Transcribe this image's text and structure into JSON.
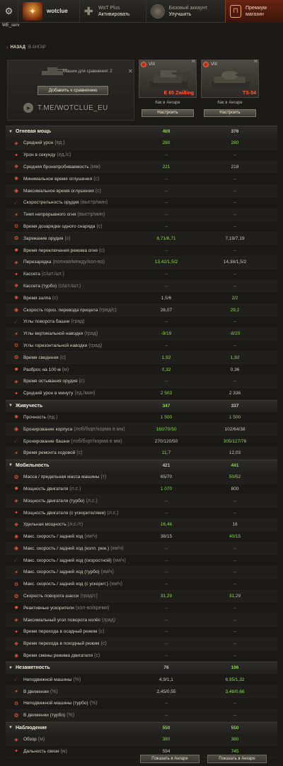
{
  "header": {
    "username": "wotclue",
    "wotplus": {
      "line1": "WoT Plus",
      "line2": "Активировать"
    },
    "base": {
      "line1": "Базовый аккаунт",
      "line2": "Улучшить"
    },
    "shop": {
      "line1": "Премиум",
      "line2": "магазин"
    }
  },
  "server": "WE_serv",
  "nav": {
    "back": "НАЗАД",
    "target": "В АНГАР"
  },
  "compare": {
    "count_label": "Машин для сравнения: 2",
    "add_button": "Добавить к сравнению",
    "telegram": "T.ME/WOTCLUE_EU"
  },
  "tanks": [
    {
      "tier": "VIII",
      "name": "E 65 Zwilling",
      "status": "Как в Ангаре",
      "config": "Настроить"
    },
    {
      "tier": "VIII",
      "name": "TS-54",
      "status": "Как в Ангаре",
      "config": "Настроить"
    }
  ],
  "colors": {
    "good": "#86d450",
    "accent": "#e0432a"
  },
  "rows": [
    {
      "type": "section",
      "name": "Огневая мощь",
      "v1": "469",
      "v2": "376",
      "c1": "good",
      "c2": "neutral"
    },
    {
      "name": "Средний урон",
      "unit": "(ед.)",
      "icon": "damage-icon",
      "v1": "280",
      "v2": "280",
      "c1": "good",
      "c2": "good"
    },
    {
      "name": "Урон в секунду",
      "unit": "(ед./с)",
      "icon": "dps-icon",
      "v1": "--",
      "v2": "--"
    },
    {
      "name": "Средняя бронепробиваемость",
      "unit": "(мм)",
      "icon": "penetration-icon",
      "v1": "221",
      "v2": "218",
      "c1": "good"
    },
    {
      "name": "Минимальное время оглушения",
      "unit": "(с)",
      "icon": "stun-min-icon",
      "v1": "--",
      "v2": "--"
    },
    {
      "name": "Максимальное время оглушения",
      "unit": "(с)",
      "icon": "stun-max-icon",
      "v1": "--",
      "v2": "--"
    },
    {
      "name": "Скорострельность орудия",
      "unit": "(выстр/мин)",
      "icon": "rate-of-fire-icon",
      "v1": "--",
      "v2": "--"
    },
    {
      "name": "Темп непрерывного огня",
      "unit": "(выстр/мин)",
      "icon": "continuous-fire-icon",
      "v1": "--",
      "v2": "--"
    },
    {
      "name": "Время дозарядки одного снаряда",
      "unit": "(с)",
      "icon": "shell-reload-icon",
      "v1": "--",
      "v2": "--"
    },
    {
      "name": "Заряжание орудия",
      "unit": "(с)",
      "icon": "gun-loading-icon",
      "v1": "6,71/6,71",
      "v2": "7,19/7,19",
      "c1": "good"
    },
    {
      "name": "Время переключения режима огня",
      "unit": "(с)",
      "icon": "fire-mode-icon",
      "v1": "--",
      "v2": "--"
    },
    {
      "name": "Перезарядка",
      "unit": "(полная/между/кол-во)",
      "icon": "reload-icon",
      "v1": "13,42/1,5/2",
      "v2": "14,38/1,5/2",
      "c1": "good"
    },
    {
      "name": "Кассета",
      "unit": "(с/шт./шт.)",
      "icon": "magazine-icon",
      "v1": "--",
      "v2": "--"
    },
    {
      "name": "Кассета (турбо)",
      "unit": "(с/шт./шт.)",
      "icon": "magazine-turbo-icon",
      "v1": "--",
      "v2": "--"
    },
    {
      "name": "Время залпа",
      "unit": "(с)",
      "icon": "salvo-icon",
      "v1": "1,5/6",
      "v2": "2/2",
      "c2": "good"
    },
    {
      "name": "Скорость гориз. перевода прицела",
      "unit": "(град/с)",
      "icon": "traverse-icon",
      "v1": "26,07",
      "v2": "29,2",
      "c2": "good"
    },
    {
      "name": "Углы поворота башни",
      "unit": "(град)",
      "icon": "turret-angle-icon",
      "v1": "--",
      "v2": "--"
    },
    {
      "name": "Углы вертикальной наводки",
      "unit": "(град)",
      "icon": "vertical-angle-icon",
      "v1": "-9/19",
      "v2": "-8/20",
      "c1": "good",
      "c2": "good"
    },
    {
      "name": "Углы горизонтальной наводки",
      "unit": "(град)",
      "icon": "horizontal-angle-icon",
      "v1": "--",
      "v2": "--"
    },
    {
      "name": "Время сведения",
      "unit": "(с)",
      "icon": "aim-time-icon",
      "v1": "1,92",
      "v2": "1,92",
      "c1": "good",
      "c2": "good"
    },
    {
      "name": "Разброс на 100 м",
      "unit": "(м)",
      "icon": "dispersion-icon",
      "v1": "0,32",
      "v2": "0,36",
      "c1": "good"
    },
    {
      "name": "Время остывания орудия",
      "unit": "(с)",
      "icon": "cooldown-icon",
      "v1": "--",
      "v2": "--"
    },
    {
      "name": "Средний урон в минуту",
      "unit": "(ед./мин)",
      "icon": "dpm-icon",
      "v1": "2 503",
      "v2": "2 336",
      "c1": "good"
    },
    {
      "type": "section",
      "name": "Живучесть",
      "v1": "347",
      "v2": "337",
      "c1": "good",
      "c2": "neutral"
    },
    {
      "name": "Прочность",
      "unit": "(ед.)",
      "icon": "hitpoints-icon",
      "v1": "1 500",
      "v2": "1 500",
      "c1": "good",
      "c2": "good"
    },
    {
      "name": "Бронирование корпуса",
      "unit": "(лоб/борт/корма в мм)",
      "icon": "hull-armor-icon",
      "v1": "160/70/50",
      "v2": "102/64/38",
      "c1": "good"
    },
    {
      "name": "Бронирование башни",
      "unit": "(лоб/борт/корма в мм)",
      "icon": "turret-armor-icon",
      "v1": "270/120/50",
      "v2": "305/127/76",
      "c2": "good"
    },
    {
      "name": "Время ремонта ходовой",
      "unit": "(с)",
      "icon": "repair-icon",
      "v1": "11,7",
      "v2": "12,03",
      "c1": "good"
    },
    {
      "type": "section",
      "name": "Мобильность",
      "v1": "421",
      "v2": "441",
      "c1": "neutral",
      "c2": "good"
    },
    {
      "name": "Масса / предельная масса машины",
      "unit": "(т)",
      "icon": "weight-icon",
      "v1": "65/70",
      "v2": "50/52",
      "c2": "good"
    },
    {
      "name": "Мощность двигателя",
      "unit": "(л.с.)",
      "icon": "engine-icon",
      "v1": "1 070",
      "v2": "800",
      "c1": "good"
    },
    {
      "name": "Мощность двигателя (турбо)",
      "unit": "(л.с.)",
      "icon": "engine-turbo-icon",
      "v1": "--",
      "v2": "--"
    },
    {
      "name": "Мощность двигателя (с ускорителями)",
      "unit": "(л.с.)",
      "icon": "engine-boost-icon",
      "v1": "--",
      "v2": "--"
    },
    {
      "name": "Удельная мощность",
      "unit": "(л.с./т)",
      "icon": "power-ratio-icon",
      "v1": "16,46",
      "v2": "16",
      "c1": "good"
    },
    {
      "name": "Макс. скорость / задний ход",
      "unit": "(км/ч)",
      "icon": "speed-icon",
      "v1": "38/15",
      "v2": "40/15",
      "c2": "good"
    },
    {
      "name": "Макс. скорость / задний ход (колп. реж.)",
      "unit": "(км/ч)",
      "icon": "speed-wheel-icon",
      "v1": "--",
      "v2": "--"
    },
    {
      "name": "Макс. скорость / задний ход (скоростной)",
      "unit": "(км/ч)",
      "icon": "speed-fast-icon",
      "v1": "--",
      "v2": "--"
    },
    {
      "name": "Макс. скорость / задний ход (турбо)",
      "unit": "(км/ч)",
      "icon": "speed-turbo-icon",
      "v1": "--",
      "v2": "--"
    },
    {
      "name": "Макс. скорость / задний ход (с ускорит.)",
      "unit": "(км/ч)",
      "icon": "speed-boost-icon",
      "v1": "--",
      "v2": "--"
    },
    {
      "name": "Скорость поворота шасси",
      "unit": "(град/с)",
      "icon": "hull-traverse-icon",
      "v1": "31,29",
      "v2": "31,29",
      "c1": "good",
      "c2": "good"
    },
    {
      "name": "Реактивные ускорители",
      "unit": "(кол-во/время)",
      "icon": "rocket-icon",
      "v1": "--",
      "v2": "--"
    },
    {
      "name": "Максимальный угол поворота колёс",
      "unit": "(град)",
      "icon": "wheel-angle-icon",
      "v1": "--",
      "v2": "--"
    },
    {
      "name": "Время перехода в осадный режим",
      "unit": "(с)",
      "icon": "siege-icon",
      "v1": "--",
      "v2": "--"
    },
    {
      "name": "Время перехода в походный режим",
      "unit": "(с)",
      "icon": "travel-icon",
      "v1": "--",
      "v2": "--"
    },
    {
      "name": "Время смены режима двигателя",
      "unit": "(с)",
      "icon": "engine-mode-icon",
      "v1": "--",
      "v2": "--"
    },
    {
      "type": "section",
      "name": "Незаметность",
      "v1": "76",
      "v2": "106",
      "c1": "neutral",
      "c2": "good"
    },
    {
      "name": "Неподвижной машины",
      "unit": "(%)",
      "icon": "camo-static-icon",
      "v1": "4,9/1,1",
      "v2": "6,95/1,32",
      "c2": "good"
    },
    {
      "name": "В движении",
      "unit": "(%)",
      "icon": "camo-moving-icon",
      "v1": "2,45/0,55",
      "v2": "3,48/0,66",
      "c2": "good"
    },
    {
      "name": "Неподвижной машины (турбо)",
      "unit": "(%)",
      "icon": "camo-static-turbo-icon",
      "v1": "--",
      "v2": "--"
    },
    {
      "name": "В движении (турбо)",
      "unit": "(%)",
      "icon": "camo-moving-turbo-icon",
      "v1": "--",
      "v2": "--"
    },
    {
      "type": "section",
      "name": "Наблюдение",
      "v1": "550",
      "v2": "550",
      "c1": "good",
      "c2": "good"
    },
    {
      "name": "Обзор",
      "unit": "(м)",
      "icon": "view-range-icon",
      "v1": "380",
      "v2": "380",
      "c1": "good",
      "c2": "good"
    },
    {
      "name": "Дальность связи",
      "unit": "(м)",
      "icon": "radio-range-icon",
      "v1": "594",
      "v2": "745",
      "c2": "good"
    }
  ],
  "footer": {
    "show_in_hangar": "Показать в Ангаре"
  }
}
